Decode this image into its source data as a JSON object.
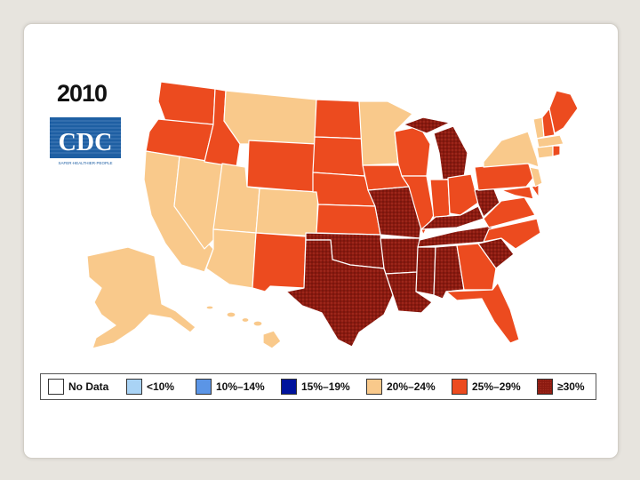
{
  "slide": {
    "year": "2010",
    "logo_text": "CDC",
    "logo_tagline": "SAFER·HEALTHIER·PEOPLE"
  },
  "colors": {
    "slide_bg": "#e7e4de",
    "no_data": "#ffffff",
    "under_10": "#a9d3f5",
    "p10_14": "#5b95e6",
    "p15_19": "#00139c",
    "p20_24": "#f9c98b",
    "p25_29": "#ec4b1f",
    "p30_plus": "#8b1a10",
    "cdc_blue": "#1e5fa3"
  },
  "legend": [
    {
      "key": "no-data",
      "label": "No Data",
      "color": "#ffffff"
    },
    {
      "key": "under-10",
      "label": "<10%",
      "color": "#a9d3f5"
    },
    {
      "key": "10-14",
      "label": "10%–14%",
      "color": "#5b95e6"
    },
    {
      "key": "15-19",
      "label": "15%–19%",
      "color": "#00139c"
    },
    {
      "key": "20-24",
      "label": "20%–24%",
      "color": "#f9c98b"
    },
    {
      "key": "25-29",
      "label": "25%–29%",
      "color": "#ec4b1f"
    },
    {
      "key": "30-plus",
      "label": "≥30%",
      "color": "#8b1a10",
      "pattern": true
    }
  ],
  "map_regions": {
    "20-24": [
      "CA",
      "NV",
      "UT",
      "AZ",
      "CO",
      "MT",
      "MN",
      "AK",
      "HI",
      "NY",
      "NJ",
      "CT",
      "MA",
      "VT"
    ],
    "25-29": [
      "WA",
      "OR",
      "ID",
      "WY",
      "ND",
      "SD",
      "NE",
      "KS",
      "NM",
      "IA",
      "WI",
      "IL",
      "IN",
      "OH",
      "PA",
      "MD",
      "DE",
      "VA",
      "NC",
      "GA",
      "FL",
      "ME",
      "NH",
      "RI"
    ],
    "30-plus": [
      "TX",
      "OK",
      "MO",
      "AR",
      "LA",
      "MS",
      "AL",
      "TN",
      "KY",
      "WV",
      "SC",
      "MI"
    ]
  }
}
